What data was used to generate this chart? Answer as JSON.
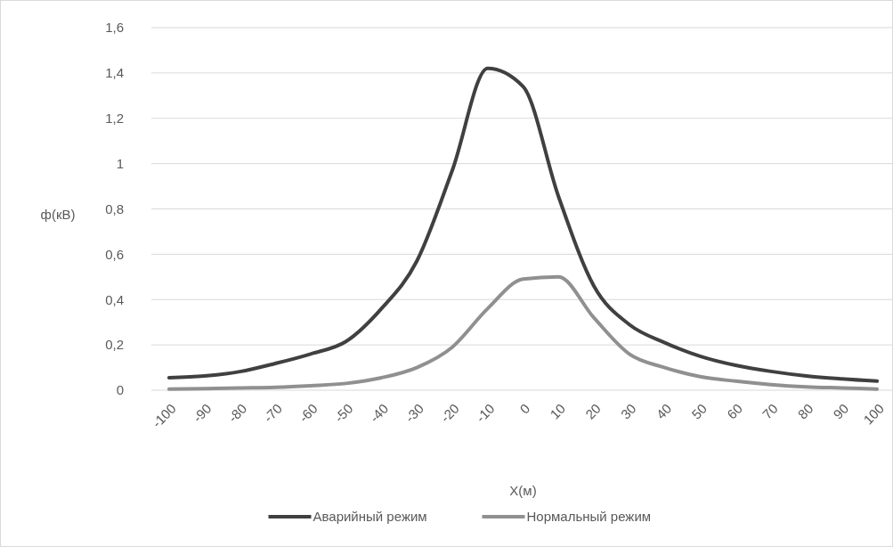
{
  "chart_data": {
    "type": "line",
    "xlabel": "X(м)",
    "ylabel": "ф(кВ)",
    "categories": [
      "-100",
      "-90",
      "-80",
      "-70",
      "-60",
      "-50",
      "-40",
      "-30",
      "-20",
      "-10",
      "0",
      "10",
      "20",
      "30",
      "40",
      "50",
      "60",
      "70",
      "80",
      "90",
      "100"
    ],
    "series": [
      {
        "name": "Аварийный режим",
        "color": "#404040",
        "values": [
          0.055,
          0.063,
          0.082,
          0.118,
          0.16,
          0.215,
          0.36,
          0.57,
          0.97,
          1.42,
          1.34,
          0.855,
          0.46,
          0.29,
          0.21,
          0.15,
          0.11,
          0.083,
          0.063,
          0.05,
          0.04
        ]
      },
      {
        "name": "Нормальный режим",
        "color": "#909090",
        "values": [
          0.005,
          0.007,
          0.01,
          0.013,
          0.02,
          0.03,
          0.055,
          0.1,
          0.19,
          0.36,
          0.49,
          0.5,
          0.32,
          0.16,
          0.1,
          0.06,
          0.04,
          0.025,
          0.015,
          0.01,
          0.005
        ]
      }
    ],
    "ylim": [
      0,
      1.6
    ],
    "yticks": [
      0,
      {
        "value": 0.2,
        "label": "0,2"
      },
      {
        "value": 0.4,
        "label": "0,4"
      },
      {
        "value": 0.6,
        "label": "0,6"
      },
      {
        "value": 0.8,
        "label": "0,8"
      },
      1,
      {
        "value": 1.2,
        "label": "1,2"
      },
      {
        "value": 1.4,
        "label": "1,4"
      },
      {
        "value": 1.6,
        "label": "1,6"
      }
    ],
    "grid": "y",
    "legend": "bottom",
    "marker": "none",
    "line_style": "solid"
  }
}
